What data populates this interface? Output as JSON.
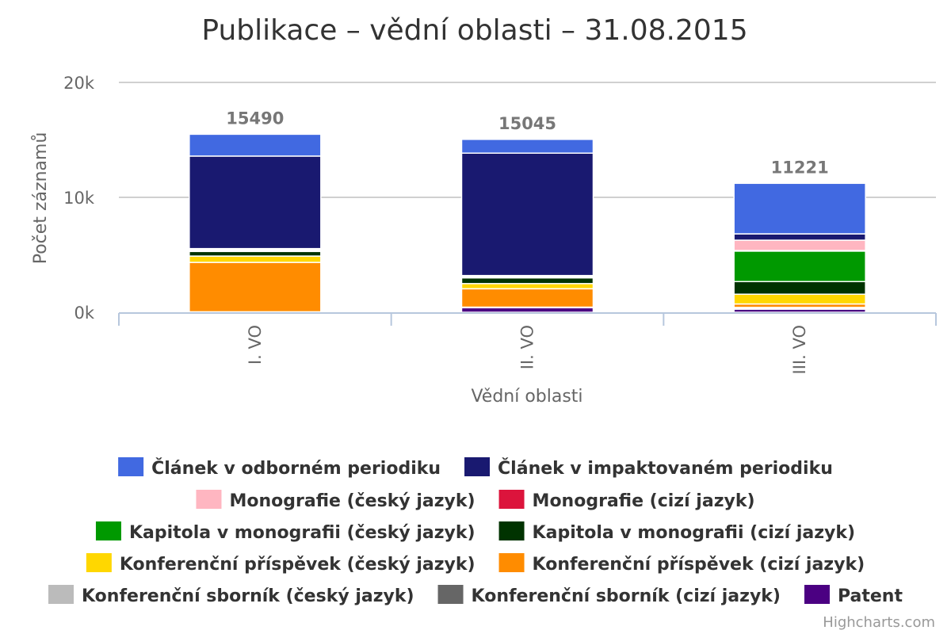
{
  "chart_data": {
    "type": "bar",
    "stacked": true,
    "title": "Publikace – vědní oblasti – 31.08.2015",
    "xlabel": "Vědní oblasti",
    "ylabel": "Počet záznamů",
    "ylim": [
      0,
      20000
    ],
    "y_ticks": [
      0,
      10000,
      20000
    ],
    "y_tick_labels": [
      "0k",
      "10k",
      "20k"
    ],
    "grid": true,
    "legend_position": "bottom",
    "categories": [
      "I. VO",
      "II. VO",
      "III. VO"
    ],
    "totals": [
      15490,
      15045,
      11221
    ],
    "series": [
      {
        "name": "Článek v odborném periodiku",
        "color": "#4169e1",
        "values": [
          1900,
          1200,
          4400
        ]
      },
      {
        "name": "Článek v impaktovaném periodiku",
        "color": "#191970",
        "values": [
          8050,
          10650,
          550
        ]
      },
      {
        "name": "Monografie (český jazyk)",
        "color": "#ffb6c1",
        "values": [
          100,
          50,
          900
        ]
      },
      {
        "name": "Monografie (cizí jazyk)",
        "color": "#dc143c",
        "values": [
          50,
          50,
          50
        ]
      },
      {
        "name": "Kapitola v monografii (český jazyk)",
        "color": "#009900",
        "values": [
          100,
          100,
          2650
        ]
      },
      {
        "name": "Kapitola v monografii (cizí jazyk)",
        "color": "#003300",
        "values": [
          400,
          500,
          1100
        ]
      },
      {
        "name": "Konferenční příspěvek (český jazyk)",
        "color": "#ffd700",
        "values": [
          550,
          450,
          850
        ]
      },
      {
        "name": "Konferenční příspěvek (cizí jazyk)",
        "color": "#ff8c00",
        "values": [
          4300,
          1600,
          300
        ]
      },
      {
        "name": "Konferenční sborník (český jazyk)",
        "color": "#bbbbbb",
        "values": [
          20,
          20,
          100
        ]
      },
      {
        "name": "Konferenční sborník (cizí jazyk)",
        "color": "#666666",
        "values": [
          20,
          25,
          51
        ]
      },
      {
        "name": "Patent",
        "color": "#4b0082",
        "values": [
          0,
          400,
          270
        ]
      }
    ]
  },
  "credits": "Highcharts.com"
}
